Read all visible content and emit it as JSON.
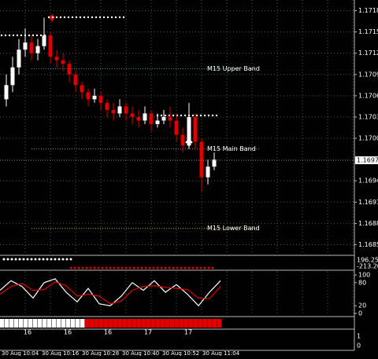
{
  "chart_data": {
    "type": "candlestick",
    "open": [
      1.1706,
      1.1708,
      1.17105,
      1.1713,
      1.1714,
      1.17125,
      1.17135,
      1.1715,
      1.1712,
      1.17115,
      1.1711,
      1.17095,
      1.1708,
      1.1707,
      1.1706,
      1.17065,
      1.17055,
      1.17045,
      1.1704,
      1.1705,
      1.1704,
      1.17035,
      1.1703,
      1.1704,
      1.17025,
      1.1703,
      1.17035,
      1.1703,
      1.1701,
      1.16995,
      1.17035,
      1.17,
      1.1695,
      1.16965
    ],
    "high": [
      1.17095,
      1.1712,
      1.17145,
      1.1716,
      1.1715,
      1.17145,
      1.17175,
      1.17155,
      1.1713,
      1.17125,
      1.17115,
      1.171,
      1.17085,
      1.17075,
      1.17075,
      1.1707,
      1.1706,
      1.17055,
      1.1706,
      1.17055,
      1.1705,
      1.17045,
      1.1705,
      1.17045,
      1.1704,
      1.17045,
      1.1705,
      1.1704,
      1.1702,
      1.17055,
      1.1704,
      1.17005,
      1.16975,
      1.16985
    ],
    "low": [
      1.1705,
      1.1707,
      1.17095,
      1.1712,
      1.17115,
      1.17115,
      1.1713,
      1.1711,
      1.17105,
      1.171,
      1.17085,
      1.1707,
      1.1706,
      1.1705,
      1.17055,
      1.17045,
      1.17035,
      1.1703,
      1.17035,
      1.1703,
      1.17025,
      1.1702,
      1.17025,
      1.17015,
      1.1702,
      1.17025,
      1.1702,
      1.17,
      1.16985,
      1.1699,
      1.1699,
      1.1693,
      1.1694,
      1.1696
    ],
    "close": [
      1.1708,
      1.17105,
      1.1713,
      1.1714,
      1.17125,
      1.17135,
      1.1715,
      1.1712,
      1.17115,
      1.1711,
      1.17095,
      1.1708,
      1.1707,
      1.1706,
      1.17065,
      1.17055,
      1.17045,
      1.1704,
      1.1705,
      1.1704,
      1.17035,
      1.1703,
      1.1704,
      1.17025,
      1.1703,
      1.17035,
      1.1703,
      1.1701,
      1.16995,
      1.17035,
      1.17,
      1.1695,
      1.16965,
      1.16975
    ],
    "up_color": "#ffffff",
    "down_color": "#e00000",
    "ylim": [
      1.1684,
      1.172
    ],
    "yticks": [
      1.17185,
      1.17155,
      1.17125,
      1.17095,
      1.17065,
      1.17035,
      1.17005,
      1.16945,
      1.16915,
      1.16885,
      1.16855
    ],
    "last_price": 1.16974,
    "grid": true,
    "bands": [
      {
        "name": "M15 Upper Band",
        "value": 1.17103,
        "color": "#1fa3b5"
      },
      {
        "name": "M15 Main Band",
        "value": 1.1699,
        "color": "#888888"
      },
      {
        "name": "M15 Lower Band",
        "value": 1.16878,
        "color": "#c8b400"
      }
    ],
    "time_labels": [
      "30 Aug 10:04",
      "30 Aug 10:16",
      "30 Aug 10:28",
      "30 Aug 10:40",
      "30 Aug 10:52",
      "30 Aug 11:04"
    ],
    "indicator_labels": [
      "196.2531",
      "-213.200"
    ],
    "oscillator": {
      "ylim": [
        0,
        100
      ],
      "yticks": [
        100,
        80,
        20,
        0
      ],
      "series": [
        {
          "color": "#ffffff",
          "values": [
            60,
            85,
            70,
            40,
            80,
            90,
            55,
            30,
            65,
            25,
            20,
            45,
            80,
            60,
            85,
            55,
            75,
            50,
            20,
            55,
            85
          ]
        },
        {
          "color": "#e00000",
          "values": [
            50,
            70,
            78,
            60,
            62,
            82,
            72,
            45,
            50,
            45,
            25,
            32,
            60,
            70,
            72,
            68,
            65,
            62,
            40,
            38,
            70
          ]
        }
      ]
    },
    "signal_blocks": [
      1,
      1,
      1,
      1,
      1,
      1,
      1,
      1,
      1,
      1,
      1,
      1,
      1,
      1,
      1,
      1,
      1,
      1,
      -1,
      -1,
      -1,
      -1,
      -1,
      -1,
      -1,
      -1,
      -1,
      -1,
      -1,
      -1,
      -1,
      -1,
      -1,
      -1,
      -1,
      -1,
      -1,
      -1,
      -1,
      -1,
      -1,
      -1,
      -1,
      -1,
      -1,
      -1,
      -1
    ],
    "day_labels": [
      "16",
      "16",
      "16",
      "17",
      "17"
    ],
    "bottom_labels": [
      "1",
      "0"
    ]
  }
}
